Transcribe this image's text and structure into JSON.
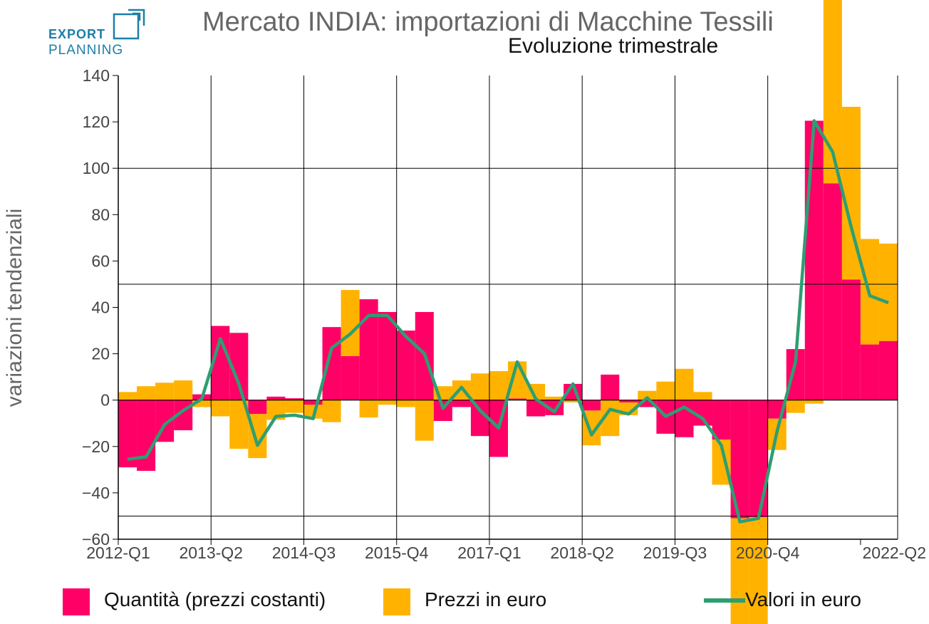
{
  "logo": {
    "line1": "EXPORT",
    "line2": "PLANNING"
  },
  "title": "Mercato INDIA: importazioni di Macchine Tessili",
  "subtitle": "Evoluzione trimestrale",
  "colors": {
    "quantity": "#ff0066",
    "prices": "#ffb300",
    "values": "#2e9e72",
    "logo": "#1c7fa8"
  },
  "chart_data": {
    "type": "bar",
    "subtype": "stacked bar with line",
    "ylabel": "variazioni tendenziali",
    "ylim": [
      -60,
      140
    ],
    "yticks": [
      140,
      120,
      100,
      80,
      60,
      40,
      20,
      0,
      -20,
      -40,
      -60
    ],
    "ytick_labels": [
      "140",
      "120",
      "100",
      "80",
      "60",
      "40",
      "20",
      "0",
      "−20",
      "−40",
      "−60"
    ],
    "hlines": [
      100,
      50,
      -50
    ],
    "xtick_labels": [
      "2012-Q1",
      "2013-Q2",
      "2014-Q3",
      "2015-Q4",
      "2017-Q1",
      "2018-Q2",
      "2019-Q3",
      "2020-Q4",
      "2022-Q2"
    ],
    "categories": [
      "2012-Q1",
      "2012-Q2",
      "2012-Q3",
      "2012-Q4",
      "2013-Q1",
      "2013-Q2",
      "2013-Q3",
      "2013-Q4",
      "2014-Q1",
      "2014-Q2",
      "2014-Q3",
      "2014-Q4",
      "2015-Q1",
      "2015-Q2",
      "2015-Q3",
      "2015-Q4",
      "2016-Q1",
      "2016-Q2",
      "2016-Q3",
      "2016-Q4",
      "2017-Q1",
      "2017-Q2",
      "2017-Q3",
      "2017-Q4",
      "2018-Q1",
      "2018-Q2",
      "2018-Q3",
      "2018-Q4",
      "2019-Q1",
      "2019-Q2",
      "2019-Q3",
      "2019-Q4",
      "2020-Q1",
      "2020-Q2",
      "2020-Q3",
      "2020-Q4",
      "2021-Q1",
      "2021-Q2",
      "2021-Q3",
      "2021-Q4",
      "2022-Q1",
      "2022-Q2"
    ],
    "series": [
      {
        "name": "Quantità (prezzi costanti)",
        "kind": "bar",
        "values": [
          -29,
          -30.5,
          -18,
          -13,
          2.5,
          32,
          29,
          -6,
          1.5,
          0.8,
          -2,
          31.5,
          19,
          43.5,
          38,
          30,
          38,
          -9,
          -3,
          -15.5,
          -24.5,
          0.7,
          -7,
          -6.5,
          7,
          -4.5,
          11,
          -1,
          -3,
          -14.5,
          -16,
          -11,
          -17,
          -51,
          -50.5,
          -8,
          22,
          120.5,
          93.5,
          52,
          24,
          25.5
        ]
      },
      {
        "name": "Prezzi in euro",
        "kind": "bar",
        "values": [
          3.5,
          6,
          7.5,
          8.5,
          -3,
          -7,
          -21,
          -19,
          -8.5,
          -5.5,
          -6,
          -9.5,
          28.5,
          -7.5,
          -2,
          -3,
          -17.5,
          6,
          8.5,
          11.5,
          12.5,
          16,
          7,
          1.5,
          -1,
          -15,
          -15.5,
          -5.5,
          4,
          8,
          13.5,
          3.5,
          -19.5,
          -52,
          -51,
          -13.5,
          -5.5,
          -1.5,
          107,
          74.5,
          45.5,
          42
        ]
      },
      {
        "name": "Valori in euro",
        "kind": "line",
        "values": [
          -25.5,
          -24.5,
          -10.5,
          -4.5,
          0.5,
          26.5,
          7,
          -19.5,
          -7,
          -6.5,
          -8,
          22.5,
          28.5,
          36.5,
          36.5,
          27.5,
          20,
          -3.5,
          5.5,
          -4.5,
          -12,
          16.5,
          0.5,
          -5,
          7,
          -15,
          -4,
          -6,
          1,
          -7,
          -3,
          -8,
          -19.5,
          -52.5,
          -51,
          -13.5,
          16.5,
          120.5,
          107,
          74.5,
          45,
          42
        ]
      }
    ],
    "legend": [
      "Quantità (prezzi costanti)",
      "Prezzi in euro",
      "Valori in euro"
    ],
    "legend_position": "bottom",
    "grid": "vertical lines at labelled quarters"
  }
}
